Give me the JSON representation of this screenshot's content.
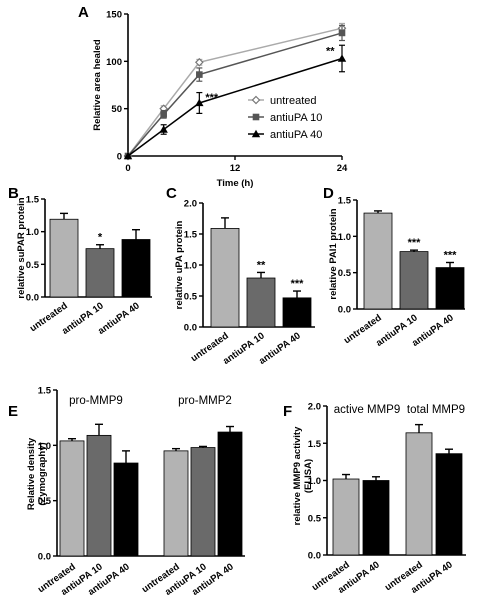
{
  "chart_data": [
    {
      "id": "A",
      "letter": "A",
      "type": "line",
      "xlabel": "Time (h)",
      "ylabel": "Relative area healed",
      "xlim": [
        0,
        24
      ],
      "ylim": [
        0,
        150
      ],
      "xticks": [
        0,
        12,
        24
      ],
      "yticks": [
        0,
        50,
        100,
        150
      ],
      "x": [
        0,
        4,
        8,
        24
      ],
      "legend_position": "center-right",
      "series": [
        {
          "name": "untreated",
          "marker": "diamond-open",
          "values": [
            0,
            50,
            99,
            135
          ],
          "errors": [
            0,
            3,
            3,
            5
          ]
        },
        {
          "name": "antiuPA 10",
          "marker": "square",
          "values": [
            0,
            44,
            86,
            130
          ],
          "errors": [
            0,
            4,
            7,
            8
          ]
        },
        {
          "name": "antiuPA 40",
          "marker": "triangle",
          "values": [
            0,
            28,
            56,
            103
          ],
          "errors": [
            0,
            5,
            11,
            14
          ]
        }
      ],
      "annotations": [
        {
          "text": "***",
          "x": 8,
          "y": 56
        },
        {
          "text": "**",
          "x": 24,
          "y": 103
        }
      ]
    },
    {
      "id": "B",
      "letter": "B",
      "type": "bar",
      "ylabel": "relative suPAR protein",
      "ylim": [
        0,
        1.5
      ],
      "yticks": [
        "0.0",
        "0.5",
        "1.0",
        "1.5"
      ],
      "categories": [
        "untreated",
        "antiuPA 10",
        "antiuPA 40"
      ],
      "values": [
        1.19,
        0.74,
        0.88
      ],
      "errors": [
        0.09,
        0.06,
        0.15
      ],
      "significance": [
        "",
        "*",
        ""
      ],
      "colors": [
        "#b3b3b3",
        "#6a6a6a",
        "#000000"
      ]
    },
    {
      "id": "C",
      "letter": "C",
      "type": "bar",
      "ylabel": "relative uPA protein",
      "ylim": [
        0,
        2.0
      ],
      "yticks": [
        "0.0",
        "0.5",
        "1.0",
        "1.5",
        "2.0"
      ],
      "categories": [
        "untreated",
        "antiuPA 10",
        "antiuPA 40"
      ],
      "values": [
        1.59,
        0.79,
        0.47
      ],
      "errors": [
        0.17,
        0.09,
        0.11
      ],
      "significance": [
        "",
        "**",
        "***"
      ],
      "colors": [
        "#b3b3b3",
        "#6a6a6a",
        "#000000"
      ]
    },
    {
      "id": "D",
      "letter": "D",
      "type": "bar",
      "ylabel": "relative PAI1 protein",
      "ylim": [
        0,
        1.5
      ],
      "yticks": [
        "0.0",
        "0.5",
        "1.0",
        "1.5"
      ],
      "categories": [
        "untreated",
        "antiuPA 10",
        "antiuPA 40"
      ],
      "values": [
        1.32,
        0.79,
        0.57
      ],
      "errors": [
        0.03,
        0.02,
        0.07
      ],
      "significance": [
        "",
        "***",
        "***"
      ],
      "colors": [
        "#b3b3b3",
        "#6a6a6a",
        "#000000"
      ]
    },
    {
      "id": "E",
      "letter": "E",
      "type": "bar",
      "ylabel": "Relative density",
      "ylabel2": "(Zymography)",
      "ylim": [
        0,
        1.5
      ],
      "yticks": [
        "0.0",
        "0.5",
        "1.0",
        "1.5"
      ],
      "groups": [
        {
          "name": "pro-MMP9",
          "categories": [
            "untreated",
            "antiuPA 10",
            "antiuPA 40"
          ],
          "values": [
            1.04,
            1.09,
            0.84
          ],
          "errors": [
            0.02,
            0.1,
            0.11
          ]
        },
        {
          "name": "pro-MMP2",
          "categories": [
            "untreated",
            "antiuPA 10",
            "antiuPA 40"
          ],
          "values": [
            0.95,
            0.98,
            1.12
          ],
          "errors": [
            0.02,
            0.01,
            0.05
          ]
        }
      ],
      "colors": [
        "#b3b3b3",
        "#6a6a6a",
        "#000000"
      ]
    },
    {
      "id": "F",
      "letter": "F",
      "type": "bar",
      "ylabel": "relative MMP9 activity",
      "ylabel2": "(ELISA)",
      "ylim": [
        0,
        2.0
      ],
      "yticks": [
        "0.0",
        "0.5",
        "1.0",
        "1.5",
        "2.0"
      ],
      "groups": [
        {
          "name": "active  MMP9",
          "categories": [
            "untreated",
            "antiuPA 40"
          ],
          "values": [
            1.02,
            1.0
          ],
          "errors": [
            0.06,
            0.05
          ]
        },
        {
          "name": "total MMP9",
          "categories": [
            "untreated",
            "antiuPA 40"
          ],
          "values": [
            1.64,
            1.36
          ],
          "errors": [
            0.11,
            0.06
          ]
        }
      ],
      "colors": [
        "#b3b3b3",
        "#000000"
      ]
    }
  ]
}
